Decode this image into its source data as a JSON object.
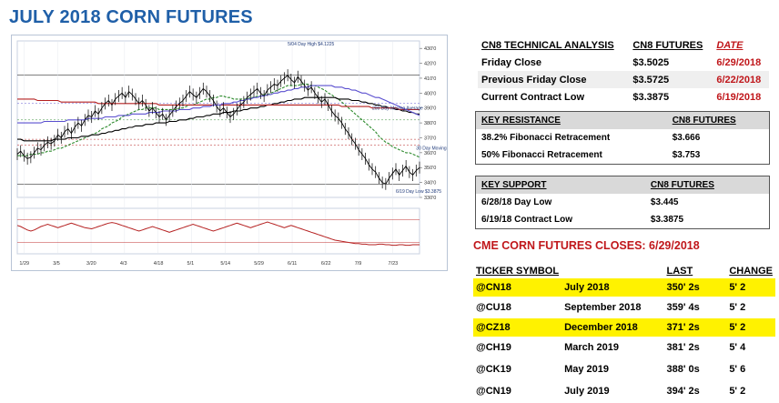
{
  "title": "JULY 2018 CORN FUTURES",
  "technical": {
    "headers": [
      "CN8 TECHNICAL ANALYSIS",
      "CN8 FUTURES",
      "DATE"
    ],
    "rows": [
      {
        "label": "Friday Close",
        "value": "$3.5025",
        "date": "6/29/2018"
      },
      {
        "label": "Previous Friday Close",
        "value": "$3.5725",
        "date": "6/22/2018"
      },
      {
        "label": "Current Contract Low",
        "value": "$3.3875",
        "date": "6/19/2018"
      }
    ]
  },
  "resistance": {
    "headers": [
      "KEY RESISTANCE",
      "CN8 FUTURES"
    ],
    "rows": [
      {
        "label": "38.2% Fibonacci Retracement",
        "value": "$3.666"
      },
      {
        "label": "50% Fibonacci Retracement",
        "value": "$3.753"
      }
    ]
  },
  "support": {
    "headers": [
      "KEY SUPPORT",
      "CN8 FUTURES"
    ],
    "rows": [
      {
        "label": "6/28/18 Day Low",
        "value": "$3.445"
      },
      {
        "label": "6/19/18 Contract Low",
        "value": "$3.3875"
      }
    ]
  },
  "closes": {
    "title": "CME CORN FUTURES CLOSES:  6/29/2018",
    "headers": [
      "TICKER SYMBOL",
      "",
      "LAST",
      "CHANGE"
    ],
    "rows": [
      {
        "ticker": "@CN18",
        "month": "July 2018",
        "last": "350' 2s",
        "change": "5' 2",
        "highlight": true
      },
      {
        "ticker": "@CU18",
        "month": "September 2018",
        "last": "359' 4s",
        "change": "5' 2",
        "highlight": false
      },
      {
        "ticker": "@CZ18",
        "month": "December 2018",
        "last": "371' 2s",
        "change": "5' 2",
        "highlight": true
      },
      {
        "ticker": "@CH19",
        "month": "March 2019",
        "last": "381' 2s",
        "change": "5' 4",
        "highlight": false
      },
      {
        "ticker": "@CK19",
        "month": "May 2019",
        "last": "388' 0s",
        "change": "5' 6",
        "highlight": false
      },
      {
        "ticker": "@CN19",
        "month": "July 2019",
        "last": "394' 2s",
        "change": "5' 2",
        "highlight": false
      }
    ]
  },
  "chart_data": {
    "type": "line",
    "title": "",
    "x_ticks": [
      "1/29",
      "3/5",
      "3/20",
      "4/3",
      "4/18",
      "5/1",
      "5/14",
      "5/29",
      "6/11",
      "6/22",
      "7/9",
      "7/23"
    ],
    "ylim": [
      330,
      435
    ],
    "y_ticks": [
      330,
      340,
      350,
      360,
      370,
      380,
      390,
      400,
      410,
      420,
      430
    ],
    "annotations": [
      {
        "text": "5/04 Day High $4.1225",
        "x_index": 80,
        "y": 432
      },
      {
        "text": "200 Day Moving Average",
        "x_index": 105,
        "y": 389
      },
      {
        "text": "30 Day Moving Average",
        "x_index": 118,
        "y": 362
      },
      {
        "text": "6/19 Day Low $3.3875",
        "x_index": 112,
        "y": 333
      }
    ],
    "h_lines": [
      412,
      393,
      382,
      369,
      365,
      339
    ],
    "series": [
      {
        "name": "",
        "color": "#000000",
        "values": [
          359,
          361,
          358,
          356,
          357,
          360,
          363,
          362,
          365,
          367,
          366,
          368,
          372,
          370,
          374,
          376,
          373,
          377,
          380,
          378,
          382,
          385,
          384,
          388,
          386,
          390,
          393,
          395,
          392,
          396,
          398,
          400,
          397,
          401,
          399,
          396,
          393,
          395,
          392,
          388,
          390,
          387,
          384,
          386,
          382,
          385,
          388,
          391,
          393,
          395,
          398,
          401,
          399,
          397,
          400,
          403,
          401,
          398,
          395,
          391,
          388,
          390,
          387,
          384,
          386,
          389,
          392,
          394,
          397,
          399,
          401,
          403,
          400,
          398,
          402,
          404,
          406,
          405,
          408,
          410,
          412,
          409,
          407,
          411,
          408,
          405,
          402,
          404,
          400,
          397,
          394,
          396,
          392,
          388,
          385,
          383,
          380,
          376,
          373,
          369,
          366,
          362,
          359,
          356,
          352,
          349,
          347,
          343,
          340,
          339,
          343,
          346,
          349,
          345,
          348,
          351,
          347,
          345,
          348,
          350
        ]
      },
      {
        "name": "",
        "color": "#2e8b2e",
        "values": [
          358,
          358,
          358,
          358,
          359,
          359,
          359,
          360,
          360,
          361,
          361,
          362,
          363,
          363,
          364,
          365,
          366,
          367,
          368,
          369,
          370,
          371,
          372,
          373,
          374,
          376,
          377,
          378,
          380,
          381,
          382,
          384,
          385,
          386,
          387,
          388,
          389,
          389,
          390,
          390,
          390,
          390,
          389,
          389,
          389,
          389,
          389,
          389,
          390,
          390,
          391,
          392,
          392,
          393,
          394,
          395,
          396,
          396,
          397,
          397,
          398,
          398,
          397,
          397,
          396,
          396,
          396,
          396,
          396,
          397,
          397,
          398,
          398,
          399,
          399,
          400,
          401,
          402,
          403,
          404,
          405,
          405,
          405,
          405,
          406,
          406,
          406,
          405,
          405,
          404,
          403,
          402,
          400,
          399,
          397,
          396,
          394,
          392,
          390,
          388,
          386,
          384,
          382,
          380,
          378,
          376,
          374,
          371,
          369,
          367,
          366,
          364,
          363,
          362,
          361,
          360,
          360,
          359,
          358,
          357
        ]
      },
      {
        "name": "",
        "color": "#000000",
        "values": [
          369,
          369,
          368,
          368,
          368,
          368,
          368,
          368,
          368,
          368,
          368,
          369,
          369,
          369,
          369,
          370,
          370,
          370,
          370,
          371,
          371,
          371,
          372,
          372,
          372,
          373,
          373,
          374,
          374,
          375,
          375,
          376,
          376,
          377,
          377,
          378,
          378,
          378,
          379,
          379,
          379,
          380,
          380,
          380,
          380,
          381,
          381,
          381,
          382,
          382,
          382,
          383,
          383,
          384,
          384,
          384,
          385,
          385,
          386,
          386,
          386,
          387,
          387,
          387,
          388,
          388,
          388,
          389,
          389,
          390,
          390,
          390,
          391,
          391,
          392,
          392,
          393,
          393,
          394,
          394,
          395,
          395,
          396,
          396,
          396,
          397,
          397,
          397,
          397,
          397,
          397,
          397,
          397,
          397,
          397,
          396,
          396,
          396,
          396,
          395,
          395,
          395,
          394,
          394,
          393,
          393,
          392,
          392,
          391,
          391,
          390,
          390,
          389,
          389,
          388,
          388,
          387,
          387,
          386,
          386
        ]
      },
      {
        "name": "",
        "color": "#b52020",
        "values": [
          396,
          396,
          396,
          396,
          396,
          396,
          395,
          395,
          395,
          395,
          395,
          395,
          395,
          394,
          394,
          394,
          394,
          394,
          394,
          394,
          394,
          394,
          394,
          394,
          393,
          393,
          393,
          393,
          393,
          393,
          393,
          393,
          393,
          393,
          393,
          393,
          393,
          393,
          393,
          393,
          393,
          393,
          392,
          392,
          392,
          392,
          392,
          392,
          392,
          392,
          392,
          392,
          392,
          392,
          392,
          392,
          392,
          392,
          392,
          392,
          392,
          392,
          392,
          392,
          392,
          392,
          392,
          392,
          392,
          392,
          392,
          392,
          392,
          392,
          392,
          392,
          392,
          392,
          392,
          392,
          392,
          392,
          392,
          392,
          392,
          392,
          392,
          392,
          392,
          392,
          392,
          392,
          392,
          392,
          392,
          392,
          391,
          391,
          391,
          391,
          391,
          391,
          391,
          391,
          391,
          390,
          390,
          390,
          390,
          390,
          390,
          390,
          390,
          389,
          389,
          389,
          389,
          389,
          389,
          389
        ]
      },
      {
        "name": "",
        "color": "#5a4fcf",
        "values": [
          380,
          380,
          380,
          380,
          380,
          380,
          380,
          380,
          381,
          381,
          381,
          381,
          381,
          381,
          381,
          382,
          382,
          382,
          382,
          382,
          382,
          383,
          383,
          383,
          383,
          383,
          384,
          384,
          384,
          384,
          385,
          385,
          385,
          385,
          386,
          386,
          386,
          386,
          386,
          387,
          387,
          387,
          387,
          388,
          388,
          388,
          388,
          388,
          389,
          389,
          389,
          389,
          390,
          390,
          390,
          391,
          391,
          391,
          392,
          392,
          392,
          393,
          393,
          393,
          394,
          394,
          395,
          395,
          396,
          396,
          397,
          397,
          398,
          398,
          399,
          399,
          400,
          400,
          401,
          401,
          402,
          402,
          403,
          403,
          404,
          404,
          404,
          405,
          405,
          405,
          405,
          405,
          405,
          405,
          404,
          404,
          404,
          403,
          403,
          402,
          402,
          401,
          400,
          400,
          399,
          398,
          397,
          397,
          396,
          395,
          394,
          393,
          392,
          391,
          390,
          389,
          388,
          387,
          386,
          385
        ]
      }
    ],
    "oscillator": {
      "ylim": [
        10,
        90
      ],
      "color": "#b52020",
      "values": [
        60,
        58,
        55,
        52,
        50,
        52,
        55,
        58,
        60,
        62,
        60,
        58,
        56,
        58,
        60,
        62,
        64,
        62,
        60,
        58,
        56,
        55,
        54,
        56,
        58,
        60,
        62,
        64,
        65,
        64,
        62,
        60,
        58,
        56,
        54,
        52,
        50,
        52,
        54,
        56,
        58,
        56,
        54,
        52,
        50,
        48,
        50,
        52,
        54,
        56,
        58,
        60,
        62,
        60,
        58,
        56,
        54,
        52,
        50,
        52,
        54,
        56,
        58,
        60,
        62,
        64,
        62,
        60,
        58,
        56,
        58,
        60,
        62,
        64,
        66,
        64,
        62,
        60,
        58,
        56,
        58,
        60,
        58,
        56,
        54,
        52,
        50,
        48,
        46,
        44,
        42,
        40,
        38,
        36,
        34,
        33,
        32,
        31,
        30,
        29,
        28,
        28,
        27,
        27,
        26,
        26,
        26,
        27,
        27,
        26,
        26,
        25,
        25,
        26,
        26,
        25,
        25,
        26,
        26,
        26
      ]
    }
  }
}
